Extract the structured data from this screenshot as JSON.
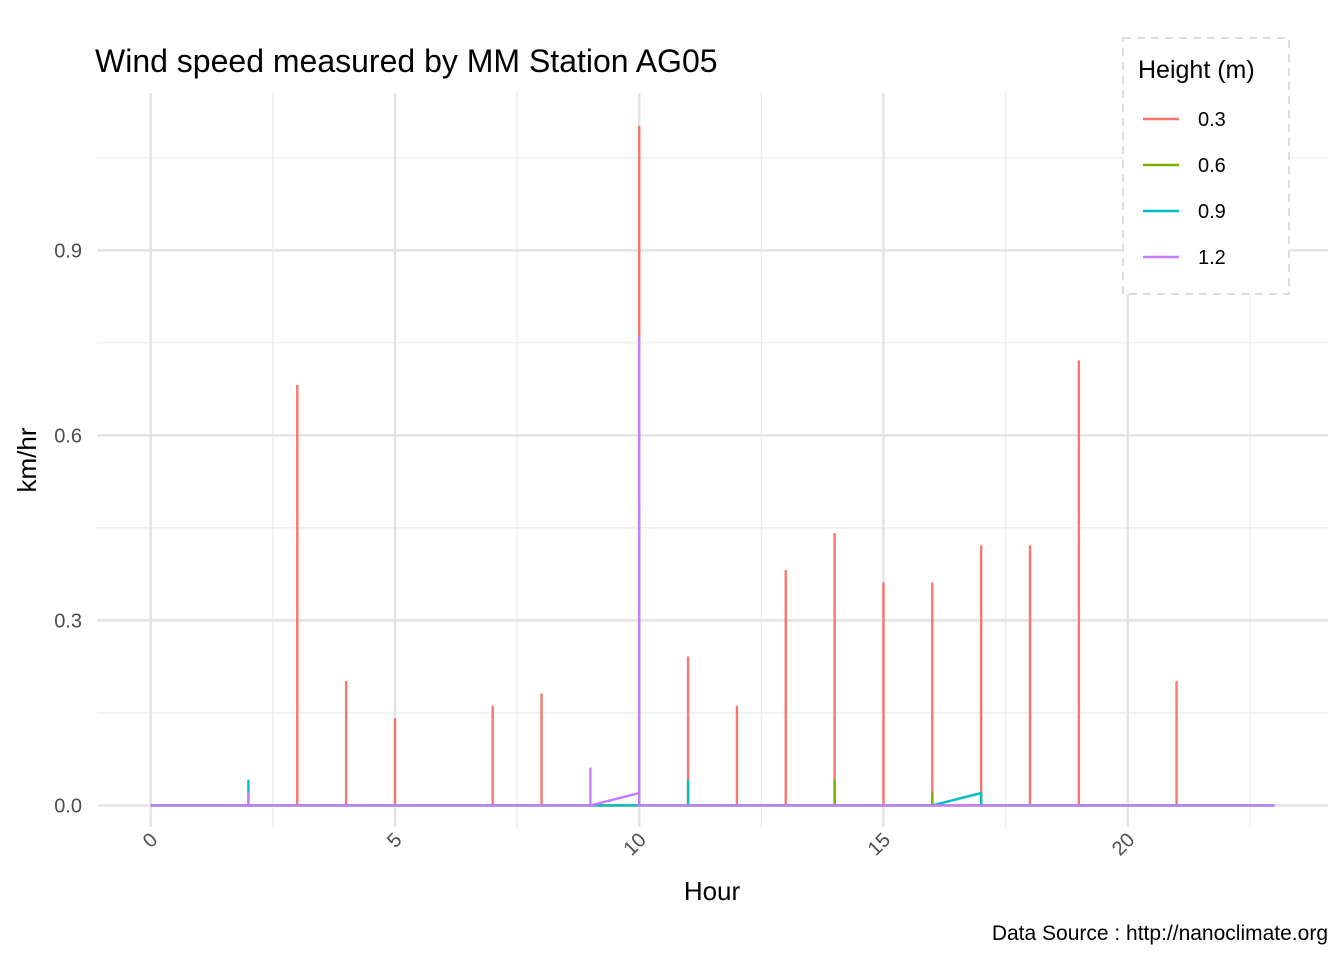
{
  "chart_data": {
    "type": "line",
    "title": "Wind speed measured by MM Station AG05",
    "xlabel": "Hour",
    "ylabel": "km/hr",
    "caption": "Data Source : http://nanoclimate.org",
    "xlim": [
      -1.1,
      24.1
    ],
    "ylim": [
      -0.035,
      1.155
    ],
    "x_ticks": [
      0,
      5,
      10,
      15,
      20
    ],
    "x_tick_labels": [
      "0",
      "5",
      "10",
      "15",
      "20"
    ],
    "x_minor_ticks": [
      2.5,
      7.5,
      12.5,
      17.5,
      22.5
    ],
    "y_ticks": [
      0.0,
      0.3,
      0.6,
      0.9
    ],
    "y_tick_labels": [
      "0.0",
      "0.3",
      "0.6",
      "0.9"
    ],
    "y_minor_ticks": [
      0.15,
      0.45,
      0.75,
      1.05
    ],
    "grid": true,
    "legend": {
      "title": "Height (m)",
      "position": "top-right",
      "border": "dashed"
    },
    "series": [
      {
        "name": "0.3",
        "color": "#F8766D",
        "points": [
          [
            0,
            0
          ],
          [
            1,
            0
          ],
          [
            2,
            0
          ],
          [
            3,
            0
          ],
          [
            3,
            0.68
          ],
          [
            3,
            0
          ],
          [
            4,
            0
          ],
          [
            4,
            0.2
          ],
          [
            4,
            0
          ],
          [
            5,
            0
          ],
          [
            5,
            0.14
          ],
          [
            5,
            0
          ],
          [
            6,
            0
          ],
          [
            7,
            0
          ],
          [
            7,
            0.16
          ],
          [
            7,
            0
          ],
          [
            8,
            0
          ],
          [
            8,
            0.18
          ],
          [
            8,
            0
          ],
          [
            9,
            0
          ],
          [
            10,
            0
          ],
          [
            10,
            1.1
          ],
          [
            10,
            0
          ],
          [
            11,
            0
          ],
          [
            11,
            0.24
          ],
          [
            11,
            0
          ],
          [
            12,
            0
          ],
          [
            12,
            0.16
          ],
          [
            12,
            0
          ],
          [
            13,
            0
          ],
          [
            13,
            0.38
          ],
          [
            13,
            0
          ],
          [
            14,
            0
          ],
          [
            14,
            0.44
          ],
          [
            14,
            0
          ],
          [
            15,
            0
          ],
          [
            15,
            0.36
          ],
          [
            15,
            0
          ],
          [
            16,
            0
          ],
          [
            16,
            0.36
          ],
          [
            16,
            0
          ],
          [
            17,
            0
          ],
          [
            17,
            0.42
          ],
          [
            17,
            0
          ],
          [
            18,
            0
          ],
          [
            18,
            0.42
          ],
          [
            18,
            0
          ],
          [
            19,
            0
          ],
          [
            19,
            0.72
          ],
          [
            19,
            0
          ],
          [
            20,
            0
          ],
          [
            21,
            0
          ],
          [
            21,
            0.2
          ],
          [
            21,
            0
          ],
          [
            22,
            0
          ],
          [
            23,
            0
          ]
        ]
      },
      {
        "name": "0.6",
        "color": "#7CAE00",
        "points": [
          [
            0,
            0
          ],
          [
            1,
            0
          ],
          [
            2,
            0
          ],
          [
            3,
            0
          ],
          [
            4,
            0
          ],
          [
            5,
            0
          ],
          [
            6,
            0
          ],
          [
            7,
            0
          ],
          [
            8,
            0
          ],
          [
            9,
            0
          ],
          [
            10,
            0
          ],
          [
            11,
            0
          ],
          [
            12,
            0
          ],
          [
            13,
            0
          ],
          [
            14,
            0
          ],
          [
            14,
            0.04
          ],
          [
            14,
            0
          ],
          [
            15,
            0
          ],
          [
            16,
            0
          ],
          [
            16,
            0.02
          ],
          [
            16,
            0
          ],
          [
            17,
            0
          ],
          [
            18,
            0
          ],
          [
            19,
            0
          ],
          [
            20,
            0
          ],
          [
            21,
            0
          ],
          [
            22,
            0
          ],
          [
            23,
            0
          ]
        ]
      },
      {
        "name": "0.9",
        "color": "#00BFC4",
        "points": [
          [
            0,
            0
          ],
          [
            1,
            0
          ],
          [
            2,
            0
          ],
          [
            2,
            0.04
          ],
          [
            2,
            0
          ],
          [
            3,
            0
          ],
          [
            4,
            0
          ],
          [
            5,
            0
          ],
          [
            6,
            0
          ],
          [
            7,
            0
          ],
          [
            8,
            0
          ],
          [
            9,
            0
          ],
          [
            10,
            0
          ],
          [
            10,
            0.48
          ],
          [
            10,
            0
          ],
          [
            11,
            0
          ],
          [
            11,
            0.04
          ],
          [
            11,
            0
          ],
          [
            12,
            0
          ],
          [
            13,
            0
          ],
          [
            14,
            0
          ],
          [
            15,
            0
          ],
          [
            16,
            0
          ],
          [
            17,
            0.02
          ],
          [
            17,
            0
          ],
          [
            18,
            0
          ],
          [
            19,
            0
          ],
          [
            20,
            0
          ],
          [
            21,
            0
          ],
          [
            22,
            0
          ],
          [
            23,
            0
          ]
        ]
      },
      {
        "name": "1.2",
        "color": "#C77CFF",
        "points": [
          [
            0,
            0
          ],
          [
            1,
            0
          ],
          [
            2,
            0
          ],
          [
            2,
            0.02
          ],
          [
            2,
            0
          ],
          [
            3,
            0
          ],
          [
            4,
            0
          ],
          [
            5,
            0
          ],
          [
            6,
            0
          ],
          [
            7,
            0
          ],
          [
            8,
            0
          ],
          [
            9,
            0
          ],
          [
            9,
            0.06
          ],
          [
            9,
            0
          ],
          [
            10,
            0.02
          ],
          [
            10,
            0.76
          ],
          [
            10,
            0
          ],
          [
            11,
            0
          ],
          [
            12,
            0
          ],
          [
            13,
            0
          ],
          [
            14,
            0
          ],
          [
            15,
            0
          ],
          [
            16,
            0
          ],
          [
            17,
            0
          ],
          [
            18,
            0
          ],
          [
            19,
            0
          ],
          [
            20,
            0
          ],
          [
            21,
            0
          ],
          [
            22,
            0
          ],
          [
            23,
            0
          ]
        ]
      }
    ]
  }
}
